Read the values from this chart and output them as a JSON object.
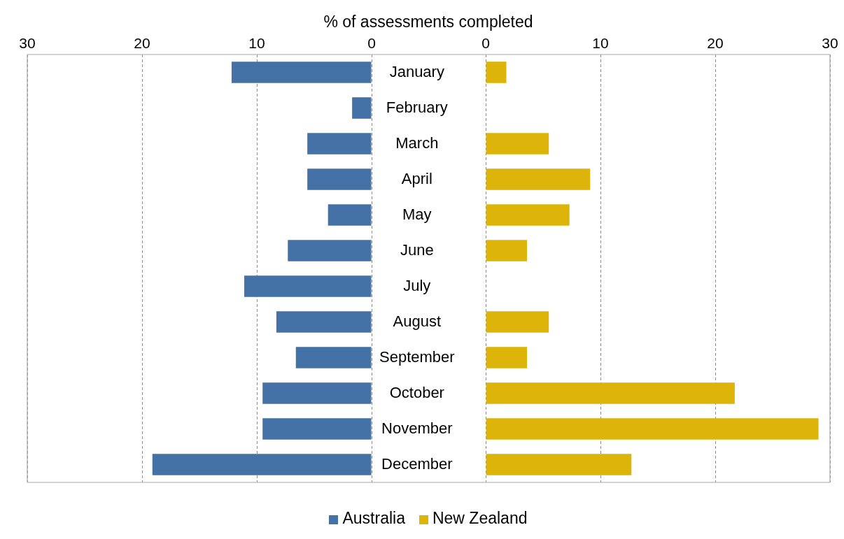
{
  "chart_data": [
    {
      "type": "bar",
      "orientation": "horizontal",
      "xlabel": "% of assessments completed",
      "categories": [
        "January",
        "February",
        "March",
        "April",
        "May",
        "June",
        "July",
        "August",
        "September",
        "October",
        "November",
        "December"
      ],
      "series": [
        {
          "name": "Australia",
          "color": "#4472a6",
          "values": [
            12.2,
            1.7,
            5.6,
            5.6,
            3.8,
            7.3,
            11.1,
            8.3,
            6.6,
            9.5,
            9.5,
            19.1
          ]
        }
      ],
      "xlim": [
        30,
        0
      ],
      "xticks": [
        30,
        20,
        10,
        0
      ],
      "grid": "x",
      "legend": "bottom"
    },
    {
      "type": "bar",
      "orientation": "horizontal",
      "categories": [
        null,
        null,
        null,
        null,
        null,
        null,
        null,
        null,
        null,
        null,
        null,
        null
      ],
      "series": [
        {
          "name": "New Zealand",
          "color": "#ddb40a",
          "values": [
            1.8,
            0,
            5.5,
            9.1,
            7.3,
            3.6,
            0,
            5.5,
            3.6,
            21.7,
            29.0,
            12.7
          ]
        }
      ],
      "xlim": [
        0,
        30
      ],
      "xticks": [
        0,
        10,
        20,
        30
      ],
      "grid": "x",
      "legend": "bottom"
    }
  ]
}
